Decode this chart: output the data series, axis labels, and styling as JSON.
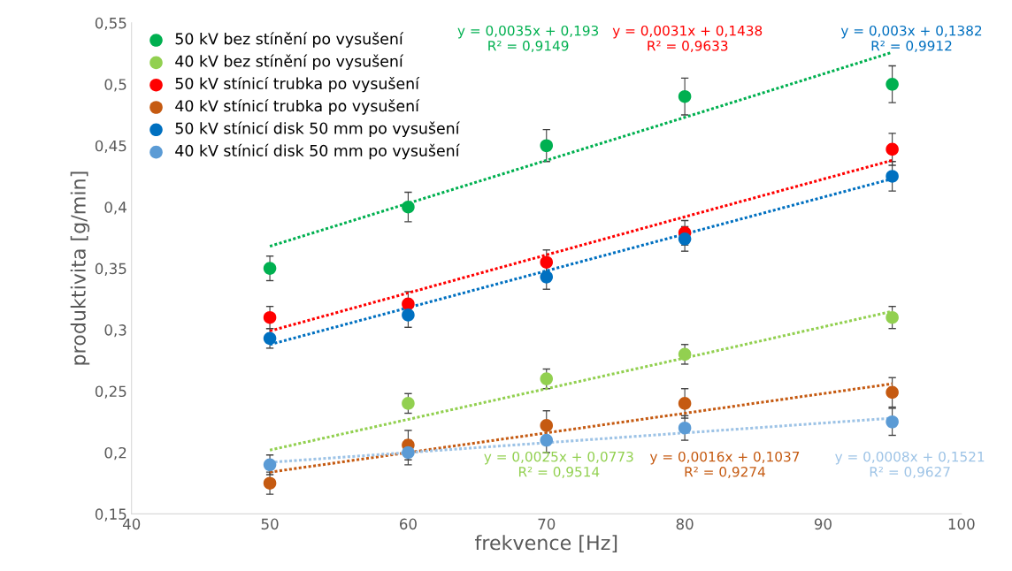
{
  "chart_data": {
    "type": "scatter",
    "xlabel": "frekvence [Hz]",
    "ylabel": "produktivita [g/min]",
    "x": [
      50,
      60,
      70,
      80,
      95
    ],
    "xlim": [
      40,
      100
    ],
    "xticks": [
      40,
      50,
      60,
      70,
      80,
      90,
      100
    ],
    "ylim": [
      0.15,
      0.55
    ],
    "yticks": [
      {
        "value": 0.15,
        "label": "0,15"
      },
      {
        "value": 0.2,
        "label": "0,2"
      },
      {
        "value": 0.25,
        "label": "0,25"
      },
      {
        "value": 0.3,
        "label": "0,3"
      },
      {
        "value": 0.35,
        "label": "0,35"
      },
      {
        "value": 0.4,
        "label": "0,4"
      },
      {
        "value": 0.45,
        "label": "0,45"
      },
      {
        "value": 0.5,
        "label": "0,5"
      },
      {
        "value": 0.55,
        "label": "0,55"
      }
    ],
    "grid": false,
    "legend": "top left",
    "marker": "circle",
    "series": [
      {
        "name": "50 kV bez stínění po vysušení",
        "color": "#00b050",
        "values": [
          0.35,
          0.4,
          0.45,
          0.49,
          0.5
        ],
        "errors": [
          0.01,
          0.012,
          0.013,
          0.015,
          0.015
        ]
      },
      {
        "name": "40 kV bez stínění po vysušení",
        "color": "#92d050",
        "values": [
          null,
          0.24,
          0.26,
          0.28,
          0.31
        ],
        "errors": [
          null,
          0.008,
          0.008,
          0.008,
          0.009
        ]
      },
      {
        "name": "50 kV stínicí trubka po vysušení",
        "color": "#ff0000",
        "values": [
          0.31,
          0.321,
          0.355,
          0.379,
          0.447
        ],
        "errors": [
          0.009,
          0.01,
          0.01,
          0.01,
          0.013
        ]
      },
      {
        "name": "40 kV stínicí trubka po vysušení",
        "color": "#c55a11",
        "values": [
          0.175,
          0.206,
          0.222,
          0.24,
          0.249
        ],
        "errors": [
          0.009,
          0.012,
          0.012,
          0.012,
          0.012
        ]
      },
      {
        "name": "50 kV stínicí disk 50 mm po vysušení",
        "color": "#0070c0",
        "values": [
          0.293,
          0.312,
          0.343,
          0.374,
          0.425
        ],
        "errors": [
          0.008,
          0.01,
          0.01,
          0.01,
          0.012
        ]
      },
      {
        "name": "40 kV stínicí disk 50 mm po vysušení",
        "color": "#5b9bd5",
        "values": [
          0.19,
          0.2,
          0.21,
          0.22,
          0.225
        ],
        "errors": [
          0.008,
          0.01,
          0.01,
          0.01,
          0.011
        ]
      },
      {
        "type": "line",
        "marker": "none",
        "color": "#00b050",
        "line_style": "dotted",
        "values": [
          0.368,
          0.403,
          0.438,
          0.473,
          0.526
        ]
      },
      {
        "type": "line",
        "marker": "none",
        "color": "#ff0000",
        "line_style": "dotted",
        "values": [
          0.299,
          0.33,
          0.361,
          0.392,
          0.438
        ]
      },
      {
        "type": "line",
        "marker": "none",
        "color": "#0070c0",
        "line_style": "dotted",
        "values": [
          0.288,
          0.318,
          0.348,
          0.378,
          0.423
        ]
      },
      {
        "type": "line",
        "marker": "none",
        "color": "#92d050",
        "line_style": "dotted",
        "values": [
          0.202,
          0.227,
          0.252,
          0.277,
          0.315
        ]
      },
      {
        "type": "line",
        "marker": "none",
        "color": "#c55a11",
        "line_style": "dotted",
        "values": [
          0.184,
          0.2,
          0.216,
          0.232,
          0.256
        ]
      },
      {
        "type": "line",
        "marker": "none",
        "color": "#9dc3e6",
        "line_style": "dotted",
        "values": [
          0.192,
          0.2,
          0.208,
          0.216,
          0.228
        ]
      }
    ],
    "annotations": [
      "y = 0,0035x + 0,193\nR² = 0,9149",
      "y = 0,0031x + 0,1438\nR² = 0,9633",
      "y = 0,003x + 0,1382\nR² = 0,9912",
      "y = 0,0025x + 0,0773\nR² = 0,9514",
      "y = 0,0016x + 0,1037\nR² = 0,9274",
      "y = 0,0008x + 0,1521\nR² = 0,9627"
    ]
  }
}
